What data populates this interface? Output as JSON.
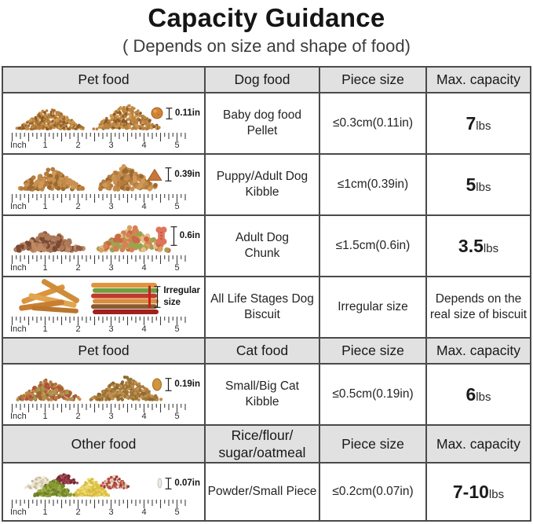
{
  "page": {
    "title": "Capacity Guidance",
    "subtitle": "( Depends on size and shape of food)"
  },
  "ruler": {
    "unit_label": "Inch",
    "marks": [
      "1",
      "2",
      "3",
      "4",
      "5"
    ]
  },
  "colors": {
    "header_bg": "#e1e1e1",
    "table_border": "#4a4a4a",
    "text": "#1f1f1f"
  },
  "sections": [
    {
      "header": {
        "food_col": "Pet food",
        "type_col": "Dog food",
        "size_col": "Piece size",
        "capacity_col": "Max. capacity"
      },
      "rows": [
        {
          "illustration": "pellet-piles",
          "sample_icon": "round-pellet-icon",
          "size_label": "0.11in",
          "name": [
            "Baby dog food",
            "Pellet"
          ],
          "piece_size": "≤0.3cm(0.11in)",
          "capacity": {
            "value": "7",
            "unit": "lbs"
          }
        },
        {
          "illustration": "kibble-piles",
          "sample_icon": "triangle-kibble-icon",
          "size_label": "0.39in",
          "name": [
            "Puppy/Adult Dog",
            "Kibble"
          ],
          "piece_size": "≤1cm(0.39in)",
          "capacity": {
            "value": "5",
            "unit": "lbs"
          }
        },
        {
          "illustration": "chunk-piles",
          "sample_icon": "bone-biscuit-icon",
          "size_label": "0.6in",
          "name": [
            "Adult Dog",
            "Chunk"
          ],
          "piece_size": "≤1.5cm(0.6in)",
          "capacity": {
            "value": "3.5",
            "unit": "lbs"
          }
        },
        {
          "illustration": "biscuit-sticks",
          "sample_icon": "red-stick-icon",
          "size_label": [
            "Irregular",
            "size"
          ],
          "name": [
            "All Life Stages Dog",
            "Biscuit"
          ],
          "piece_size": "Irregular size",
          "capacity": {
            "note": [
              "Depends on the",
              "real size of biscuit"
            ]
          }
        }
      ]
    },
    {
      "header": {
        "food_col": "Pet food",
        "type_col": "Cat food",
        "size_col": "Piece size",
        "capacity_col": "Max. capacity"
      },
      "rows": [
        {
          "illustration": "cat-kibble-piles",
          "sample_icon": "oval-kibble-icon",
          "size_label": "0.19in",
          "name": [
            "Small/Big Cat",
            "Kibble"
          ],
          "piece_size": "≤0.5cm(0.19in)",
          "capacity": {
            "value": "6",
            "unit": "lbs"
          }
        }
      ]
    },
    {
      "header": {
        "food_col": "Other food",
        "type_col": [
          "Rice/flour/",
          "sugar/oatmeal"
        ],
        "size_col": "Piece size",
        "capacity_col": "Max. capacity"
      },
      "rows": [
        {
          "illustration": "grain-piles",
          "sample_icon": "grain-icon",
          "size_label": "0.07in",
          "name": "Powder/Small Piece",
          "piece_size": "≤0.2cm(0.07in)",
          "capacity": {
            "value": "7-10",
            "unit": "lbs"
          }
        }
      ]
    }
  ]
}
